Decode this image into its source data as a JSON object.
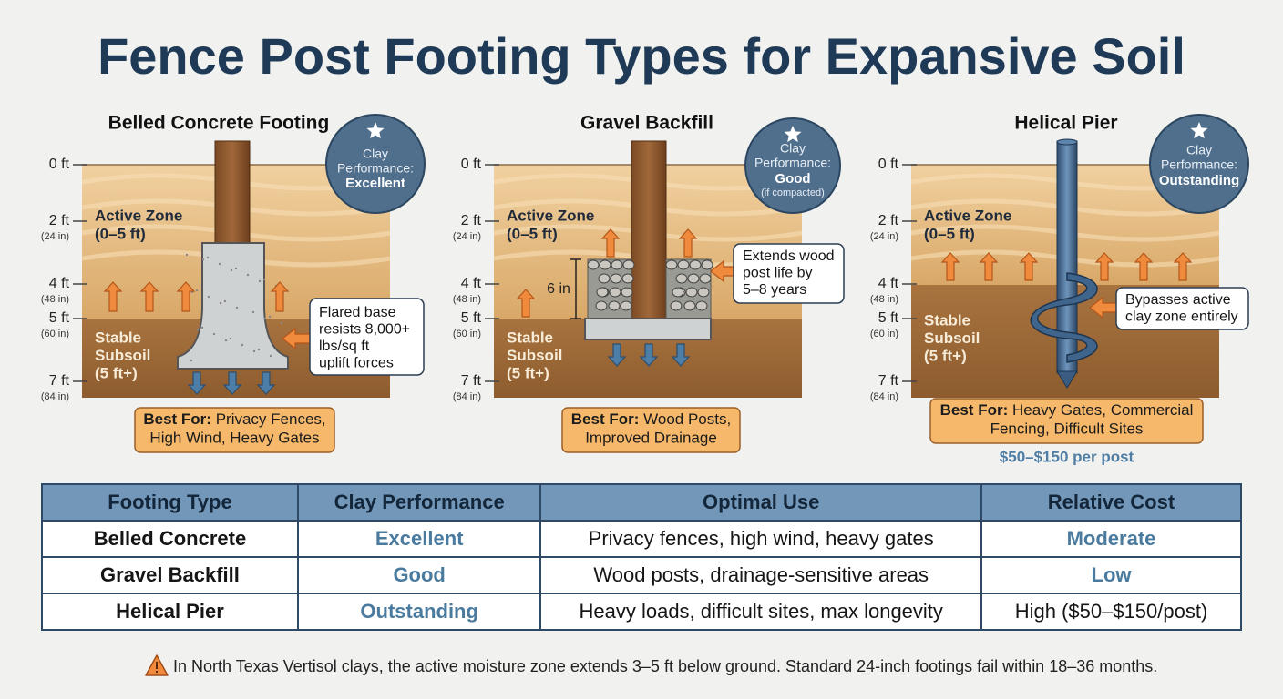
{
  "title": "Fence Post Footing Types for Expansive Soil",
  "depth_scale": [
    {
      "label": "0 ft"
    },
    {
      "label": "2 ft",
      "sub": "(24 in)"
    },
    {
      "label": "4 ft",
      "sub": "(48 in)"
    },
    {
      "label": "5 ft",
      "sub": "(60 in)"
    },
    {
      "label": "7 ft",
      "sub": "(84 in)"
    }
  ],
  "zones": {
    "active": [
      "Active Zone",
      "(0–5 ft)"
    ],
    "stable": [
      "Stable",
      "Subsoil",
      "(5 ft+)"
    ]
  },
  "panels": [
    {
      "title": "Belled Concrete Footing",
      "badge": {
        "label": [
          "Clay",
          "Performance:"
        ],
        "rating": "Excellent"
      },
      "callout": [
        "Flared base",
        "resists 8,000+",
        "lbs/sq ft",
        "uplift forces"
      ],
      "best_for": {
        "label": "Best For:",
        "lines": [
          "Privacy Fences,",
          "High Wind, Heavy Gates"
        ]
      }
    },
    {
      "title": "Gravel Backfill",
      "badge": {
        "label": [
          "Clay",
          "Performance:"
        ],
        "rating": "Good",
        "note": "(if compacted)"
      },
      "dimension": "6 in",
      "callout": [
        "Extends wood",
        "post life by",
        "5–8 years"
      ],
      "best_for": {
        "label": "Best For:",
        "lines": [
          "Wood Posts,",
          "Improved Drainage"
        ]
      }
    },
    {
      "title": "Helical Pier",
      "badge": {
        "label": [
          "Clay",
          "Performance:"
        ],
        "rating": "Outstanding"
      },
      "callout": [
        "Bypasses active",
        "clay zone entirely"
      ],
      "best_for": {
        "label": "Best For:",
        "lines": [
          "Heavy Gates, Commercial",
          "Fencing, Difficult Sites"
        ]
      },
      "price": "$50–$150 per post"
    }
  ],
  "table": {
    "header": [
      "Footing Type",
      "Clay Performance",
      "Optimal Use",
      "Relative Cost"
    ],
    "rows": [
      [
        "Belled Concrete",
        "Excellent",
        "Privacy fences, high wind, heavy gates",
        "Moderate"
      ],
      [
        "Gravel Backfill",
        "Good",
        "Wood posts, drainage-sensitive areas",
        "Low"
      ],
      [
        "Helical Pier",
        "Outstanding",
        "Heavy loads, difficult sites, max longevity",
        "High ($50–$150/post)"
      ]
    ]
  },
  "footnote": "In North Texas Vertisol clays, the active moisture zone extends 3–5 ft below ground. Standard 24-inch footings fail within 18–36 months."
}
